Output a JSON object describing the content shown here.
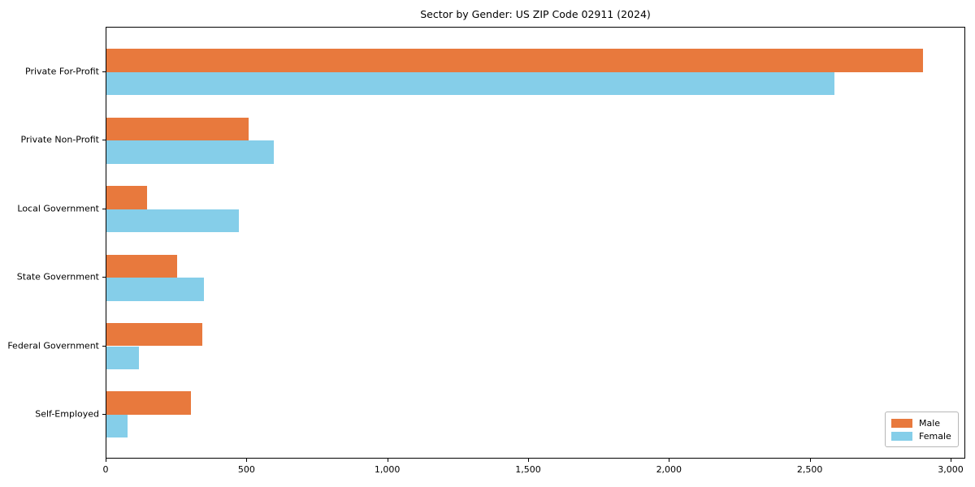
{
  "chart_data": {
    "type": "bar",
    "orientation": "horizontal",
    "title": "Sector by Gender: US ZIP Code 02911 (2024)",
    "categories": [
      "Private For-Profit",
      "Private Non-Profit",
      "Local Government",
      "State Government",
      "Federal Government",
      "Self-Employed"
    ],
    "series": [
      {
        "name": "Male",
        "color": "#e8793d",
        "values": [
          2900,
          505,
          145,
          250,
          340,
          300
        ]
      },
      {
        "name": "Female",
        "color": "#85cee9",
        "values": [
          2585,
          595,
          470,
          345,
          115,
          75
        ]
      }
    ],
    "xlabel": "",
    "ylabel": "",
    "xlim": [
      0,
      3052
    ],
    "xtick_values": [
      0,
      500,
      1000,
      1500,
      2000,
      2500,
      3000
    ],
    "xtick_labels": [
      "0",
      "500",
      "1,000",
      "1,500",
      "2,000",
      "2,500",
      "3,000"
    ],
    "grid": false,
    "legend_position": "lower right",
    "background_color": "#ffffff",
    "spine_color": "#000000"
  }
}
